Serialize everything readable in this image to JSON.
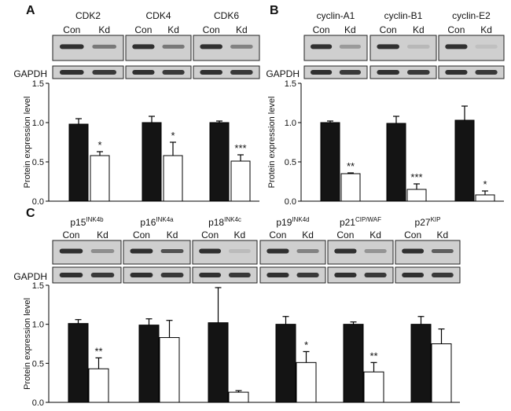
{
  "colors": {
    "con_bar": "#141414",
    "kd_bar": "#ffffff",
    "axis": "#000000",
    "blot_bg": "#cfcfcf",
    "band": "#1e1e1e"
  },
  "loading_control_label": "GAPDH",
  "chart_data": [
    {
      "panel": "A",
      "type": "bar",
      "ylabel": "Protein expression level",
      "ylim": [
        0,
        1.5
      ],
      "yticks": [
        "0.0",
        "0.5",
        "1.0",
        "1.5"
      ],
      "lane_labels": [
        "Con",
        "Kd"
      ],
      "proteins": [
        {
          "name": "CDK2",
          "sup": "",
          "con": 0.98,
          "con_err": 0.07,
          "kd": 0.58,
          "kd_err": 0.05,
          "sig": "*"
        },
        {
          "name": "CDK4",
          "sup": "",
          "con": 1.0,
          "con_err": 0.08,
          "kd": 0.58,
          "kd_err": 0.17,
          "sig": "*"
        },
        {
          "name": "CDK6",
          "sup": "",
          "con": 1.0,
          "con_err": 0.02,
          "kd": 0.51,
          "kd_err": 0.08,
          "sig": "***"
        }
      ]
    },
    {
      "panel": "B",
      "type": "bar",
      "ylabel": "Protein expression level",
      "ylim": [
        0,
        1.5
      ],
      "yticks": [
        "0.0",
        "0.5",
        "1.0",
        "1.5"
      ],
      "lane_labels": [
        "Con",
        "Kd"
      ],
      "proteins": [
        {
          "name": "cyclin-A1",
          "sup": "",
          "con": 1.0,
          "con_err": 0.02,
          "kd": 0.35,
          "kd_err": 0.01,
          "sig": "**"
        },
        {
          "name": "cyclin-B1",
          "sup": "",
          "con": 0.99,
          "con_err": 0.09,
          "kd": 0.15,
          "kd_err": 0.07,
          "sig": "***"
        },
        {
          "name": "cyclin-E2",
          "sup": "",
          "con": 1.03,
          "con_err": 0.18,
          "kd": 0.08,
          "kd_err": 0.05,
          "sig": "*"
        }
      ]
    },
    {
      "panel": "C",
      "type": "bar",
      "ylabel": "Protein expression level",
      "ylim": [
        0,
        1.5
      ],
      "yticks": [
        "0.0",
        "0.5",
        "1.0",
        "1.5"
      ],
      "lane_labels": [
        "Con",
        "Kd"
      ],
      "proteins": [
        {
          "name": "p15",
          "sup": "INK4b",
          "con": 1.01,
          "con_err": 0.05,
          "kd": 0.43,
          "kd_err": 0.14,
          "sig": "**"
        },
        {
          "name": "p16",
          "sup": "INK4a",
          "con": 0.99,
          "con_err": 0.08,
          "kd": 0.83,
          "kd_err": 0.22,
          "sig": ""
        },
        {
          "name": "p18",
          "sup": "INK4c",
          "con": 1.02,
          "con_err": 0.45,
          "kd": 0.13,
          "kd_err": 0.02,
          "sig": ""
        },
        {
          "name": "p19",
          "sup": "INK4d",
          "con": 1.0,
          "con_err": 0.1,
          "kd": 0.51,
          "kd_err": 0.14,
          "sig": "*"
        },
        {
          "name": "p21",
          "sup": "CIP/WAF",
          "con": 1.0,
          "con_err": 0.03,
          "kd": 0.39,
          "kd_err": 0.12,
          "sig": "**"
        },
        {
          "name": "p27",
          "sup": "KIP",
          "con": 1.0,
          "con_err": 0.1,
          "kd": 0.75,
          "kd_err": 0.19,
          "sig": ""
        }
      ]
    }
  ]
}
